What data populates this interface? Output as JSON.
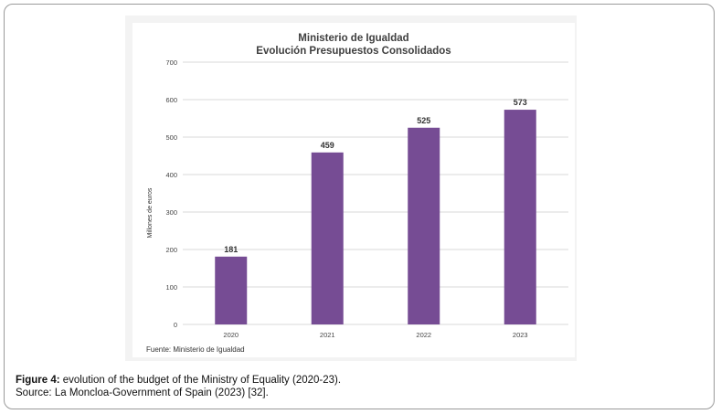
{
  "chart_data": {
    "type": "bar",
    "title": "Ministerio de Igualdad",
    "subtitle": "Evolución Presupuestos Consolidados",
    "categories": [
      "2020",
      "2021",
      "2022",
      "2023"
    ],
    "values": [
      181,
      459,
      525,
      573
    ],
    "ylabel": "Millones de euros",
    "xlabel": "",
    "ylim": [
      0,
      700
    ],
    "yticks": [
      0,
      100,
      200,
      300,
      400,
      500,
      600,
      700
    ],
    "grid": true,
    "bar_color": "#764c94",
    "source_note": "Fuente: Ministerio de Igualdad"
  },
  "caption": {
    "label": "Figure 4:",
    "text": " evolution of the budget of the Ministry of Equality (2020-23).",
    "source": "Source: La Moncloa-Government of Spain (2023) [32]."
  }
}
